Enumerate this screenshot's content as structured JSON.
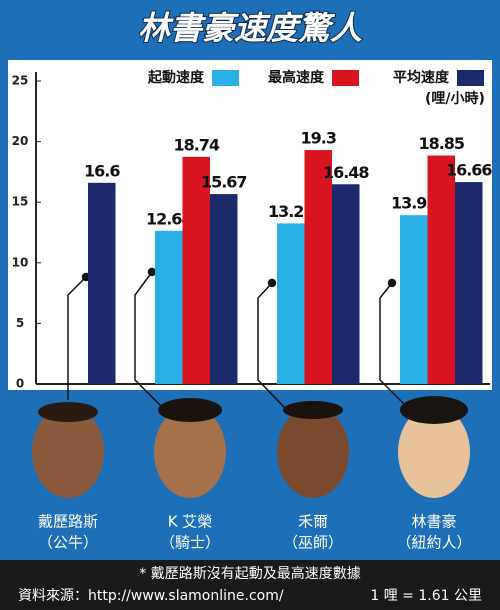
{
  "chart_data": {
    "type": "bar",
    "title": "林書豪速度驚人",
    "unit": "(哩/小時)",
    "categories": [
      "戴歷路斯",
      "K 艾榮",
      "禾爾",
      "林書豪"
    ],
    "teams": [
      "（公牛）",
      "（騎士）",
      "（巫師）",
      "（紐約人）"
    ],
    "series": [
      {
        "name": "起動速度",
        "color": "#29aee6",
        "values": [
          null,
          12.64,
          13.25,
          13.93
        ]
      },
      {
        "name": "最高速度",
        "color": "#d7141f",
        "values": [
          null,
          18.74,
          19.3,
          18.85
        ]
      },
      {
        "name": "平均速度",
        "color": "#1b2a6b",
        "values": [
          16.6,
          15.67,
          16.48,
          16.66
        ]
      }
    ],
    "ylim": [
      0,
      25
    ],
    "yticks": [
      0,
      5,
      10,
      15,
      20,
      25
    ],
    "notes": [
      "* 戴歷路斯沒有起動及最高速度數據",
      "資料來源：http://www.slamonline.com/",
      "1 哩 = 1.61 公里"
    ]
  }
}
